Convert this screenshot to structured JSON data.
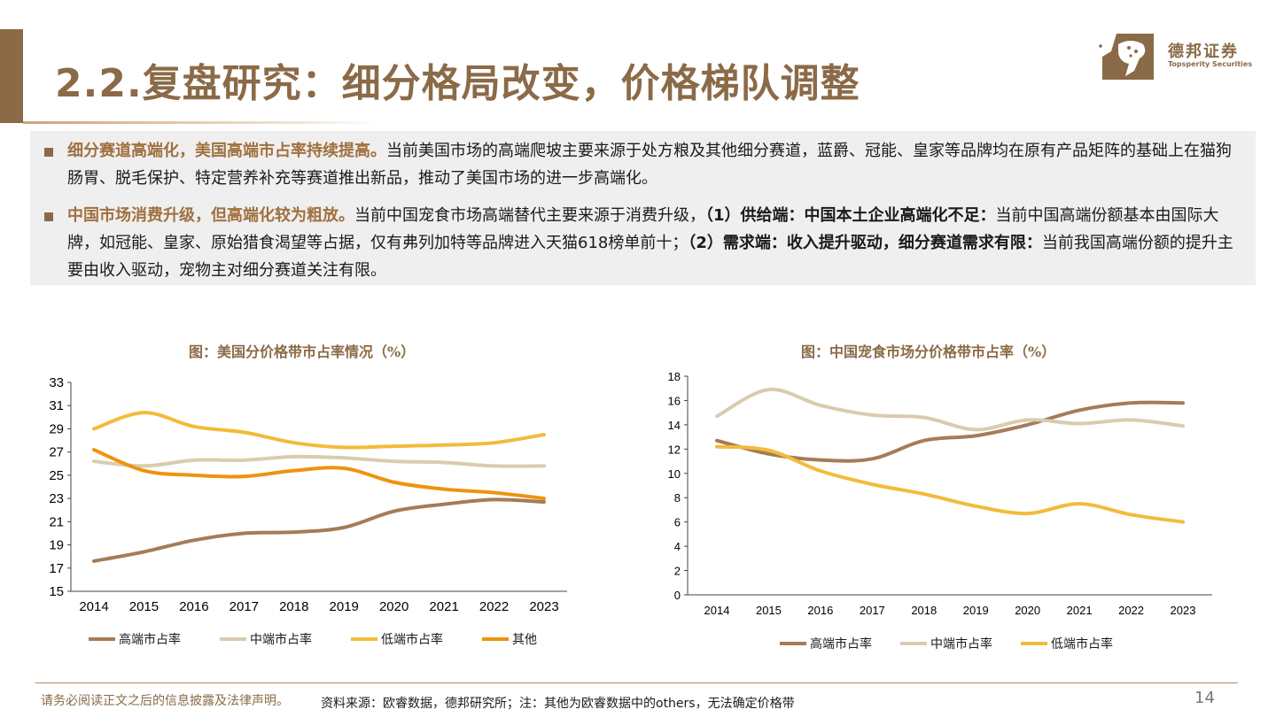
{
  "header": {
    "title": "2.2.复盘研究：细分格局改变，价格梯队调整",
    "logo_cn": "德邦证券",
    "logo_en": "Topsperity Securities"
  },
  "bullets": [
    {
      "highlight": "细分赛道高端化，美国高端市占率持续提高。",
      "text": "当前美国市场的高端爬坡主要来源于处方粮及其他细分赛道，蓝爵、冠能、皇家等品牌均在原有产品矩阵的基础上在猫狗肠胃、脱毛保护、特定营养补充等赛道推出新品，推动了美国市场的进一步高端化。"
    },
    {
      "highlight": "中国市场消费升级，但高端化较为粗放。",
      "text_a": "当前中国宠食市场高端替代主要来源于消费升级，",
      "bold_a": "（1）供给端：中国本土企业高端化不足：",
      "text_b": "当前中国高端份额基本由国际大牌，如冠能、皇家、原始猎食渴望等占据，仅有弗列加特等品牌进入天猫618榜单前十；",
      "bold_b": "（2）需求端：收入提升驱动，细分赛道需求有限：",
      "text_c": "当前我国高端份额的提升主要由收入驱动，宠物主对细分赛道关注有限。"
    }
  ],
  "chart_data": [
    {
      "type": "line",
      "title": "图：美国分价格带市占率情况（%）",
      "xlabel": "",
      "ylabel": "",
      "categories": [
        "2014",
        "2015",
        "2016",
        "2017",
        "2018",
        "2019",
        "2020",
        "2021",
        "2022",
        "2023"
      ],
      "ylim": [
        15,
        33
      ],
      "yticks": [
        15,
        17,
        19,
        21,
        23,
        25,
        27,
        29,
        31,
        33
      ],
      "series": [
        {
          "name": "高端市占率",
          "color": "#a47c58",
          "values": [
            17.6,
            18.4,
            19.4,
            20.0,
            20.1,
            20.5,
            21.9,
            22.5,
            22.9,
            22.7
          ]
        },
        {
          "name": "中端市占率",
          "color": "#d9ccae",
          "values": [
            26.2,
            25.8,
            26.3,
            26.3,
            26.6,
            26.5,
            26.2,
            26.1,
            25.8,
            25.8
          ]
        },
        {
          "name": "低端市占率",
          "color": "#f3bb3a",
          "values": [
            29.0,
            30.4,
            29.2,
            28.7,
            27.8,
            27.4,
            27.5,
            27.6,
            27.8,
            28.5
          ]
        },
        {
          "name": "其他",
          "color": "#ef930e",
          "values": [
            27.2,
            25.4,
            25.0,
            24.9,
            25.4,
            25.6,
            24.4,
            23.8,
            23.5,
            23.0
          ]
        }
      ],
      "legend": "bottom"
    },
    {
      "type": "line",
      "title": "图：中国宠食市场分价格带市占率（%）",
      "xlabel": "",
      "ylabel": "",
      "categories": [
        "2014",
        "2015",
        "2016",
        "2017",
        "2018",
        "2019",
        "2020",
        "2021",
        "2022",
        "2023"
      ],
      "ylim": [
        0,
        18
      ],
      "yticks": [
        0,
        2,
        4,
        6,
        8,
        10,
        12,
        14,
        16,
        18
      ],
      "series": [
        {
          "name": "高端市占率",
          "color": "#a47c58",
          "values": [
            12.7,
            11.6,
            11.1,
            11.2,
            12.7,
            13.1,
            14.0,
            15.2,
            15.8,
            15.8
          ]
        },
        {
          "name": "中端市占率",
          "color": "#d9ccae",
          "values": [
            14.7,
            16.9,
            15.6,
            14.8,
            14.6,
            13.6,
            14.4,
            14.1,
            14.4,
            13.9
          ]
        },
        {
          "name": "低端市占率",
          "color": "#f3bb3a",
          "values": [
            12.2,
            11.9,
            10.2,
            9.1,
            8.3,
            7.3,
            6.7,
            7.5,
            6.6,
            6.0
          ]
        }
      ],
      "legend": "bottom"
    }
  ],
  "footer": {
    "disclaimer": "请务必阅读正文之后的信息披露及法律声明。",
    "source": "资料来源：欧睿数据，德邦研究所；注：其他为欧睿数据中的others，无法确定价格带",
    "page": "14"
  }
}
